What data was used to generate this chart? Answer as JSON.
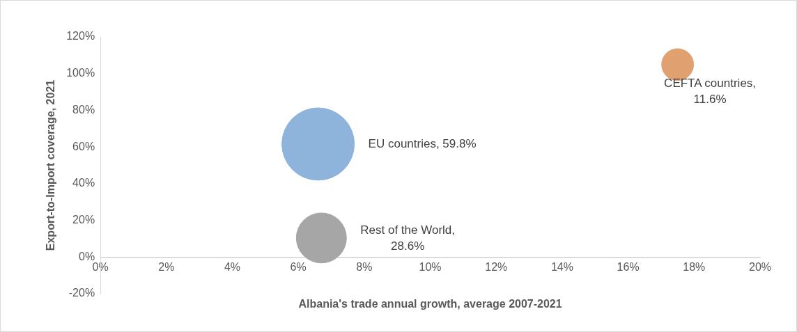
{
  "chart_data": {
    "type": "bubble",
    "xlabel": "Albania's trade annual growth, average 2007-2021",
    "ylabel": "Export-to-Import coverage, 2021",
    "xlim": [
      0,
      20
    ],
    "xticks": [
      {
        "value": 0,
        "label": "0%"
      },
      {
        "value": 2,
        "label": "2%"
      },
      {
        "value": 4,
        "label": "4%"
      },
      {
        "value": 6,
        "label": "6%"
      },
      {
        "value": 8,
        "label": "8%"
      },
      {
        "value": 10,
        "label": "10%"
      },
      {
        "value": 12,
        "label": "12%"
      },
      {
        "value": 14,
        "label": "14%"
      },
      {
        "value": 16,
        "label": "16%"
      },
      {
        "value": 18,
        "label": "18%"
      },
      {
        "value": 20,
        "label": "20%"
      }
    ],
    "ylim": [
      -20,
      120
    ],
    "yticks": [
      {
        "value": -20,
        "label": "-20%"
      },
      {
        "value": 0,
        "label": "0%"
      },
      {
        "value": 20,
        "label": "20%"
      },
      {
        "value": 40,
        "label": "40%"
      },
      {
        "value": 60,
        "label": "60%"
      },
      {
        "value": 80,
        "label": "80%"
      },
      {
        "value": 100,
        "label": "100%"
      },
      {
        "value": 120,
        "label": "120%"
      }
    ],
    "grid": false,
    "series": [
      {
        "color": "#8fb4dc",
        "x": [
          6.6
        ],
        "values": [
          61.6
        ],
        "sizes": [
          59.8
        ],
        "value_labels": [
          "EU countries, 59.8%"
        ]
      },
      {
        "color": "#a6a6a6",
        "x": [
          6.7
        ],
        "values": [
          10.4
        ],
        "sizes": [
          28.6
        ],
        "value_labels": [
          "Rest of the World, 28.6%"
        ]
      },
      {
        "color": "#e0a070",
        "x": [
          17.5
        ],
        "values": [
          104.9
        ],
        "sizes": [
          11.6
        ],
        "value_labels": [
          "CEFTA countries, 11.6%"
        ]
      }
    ]
  }
}
